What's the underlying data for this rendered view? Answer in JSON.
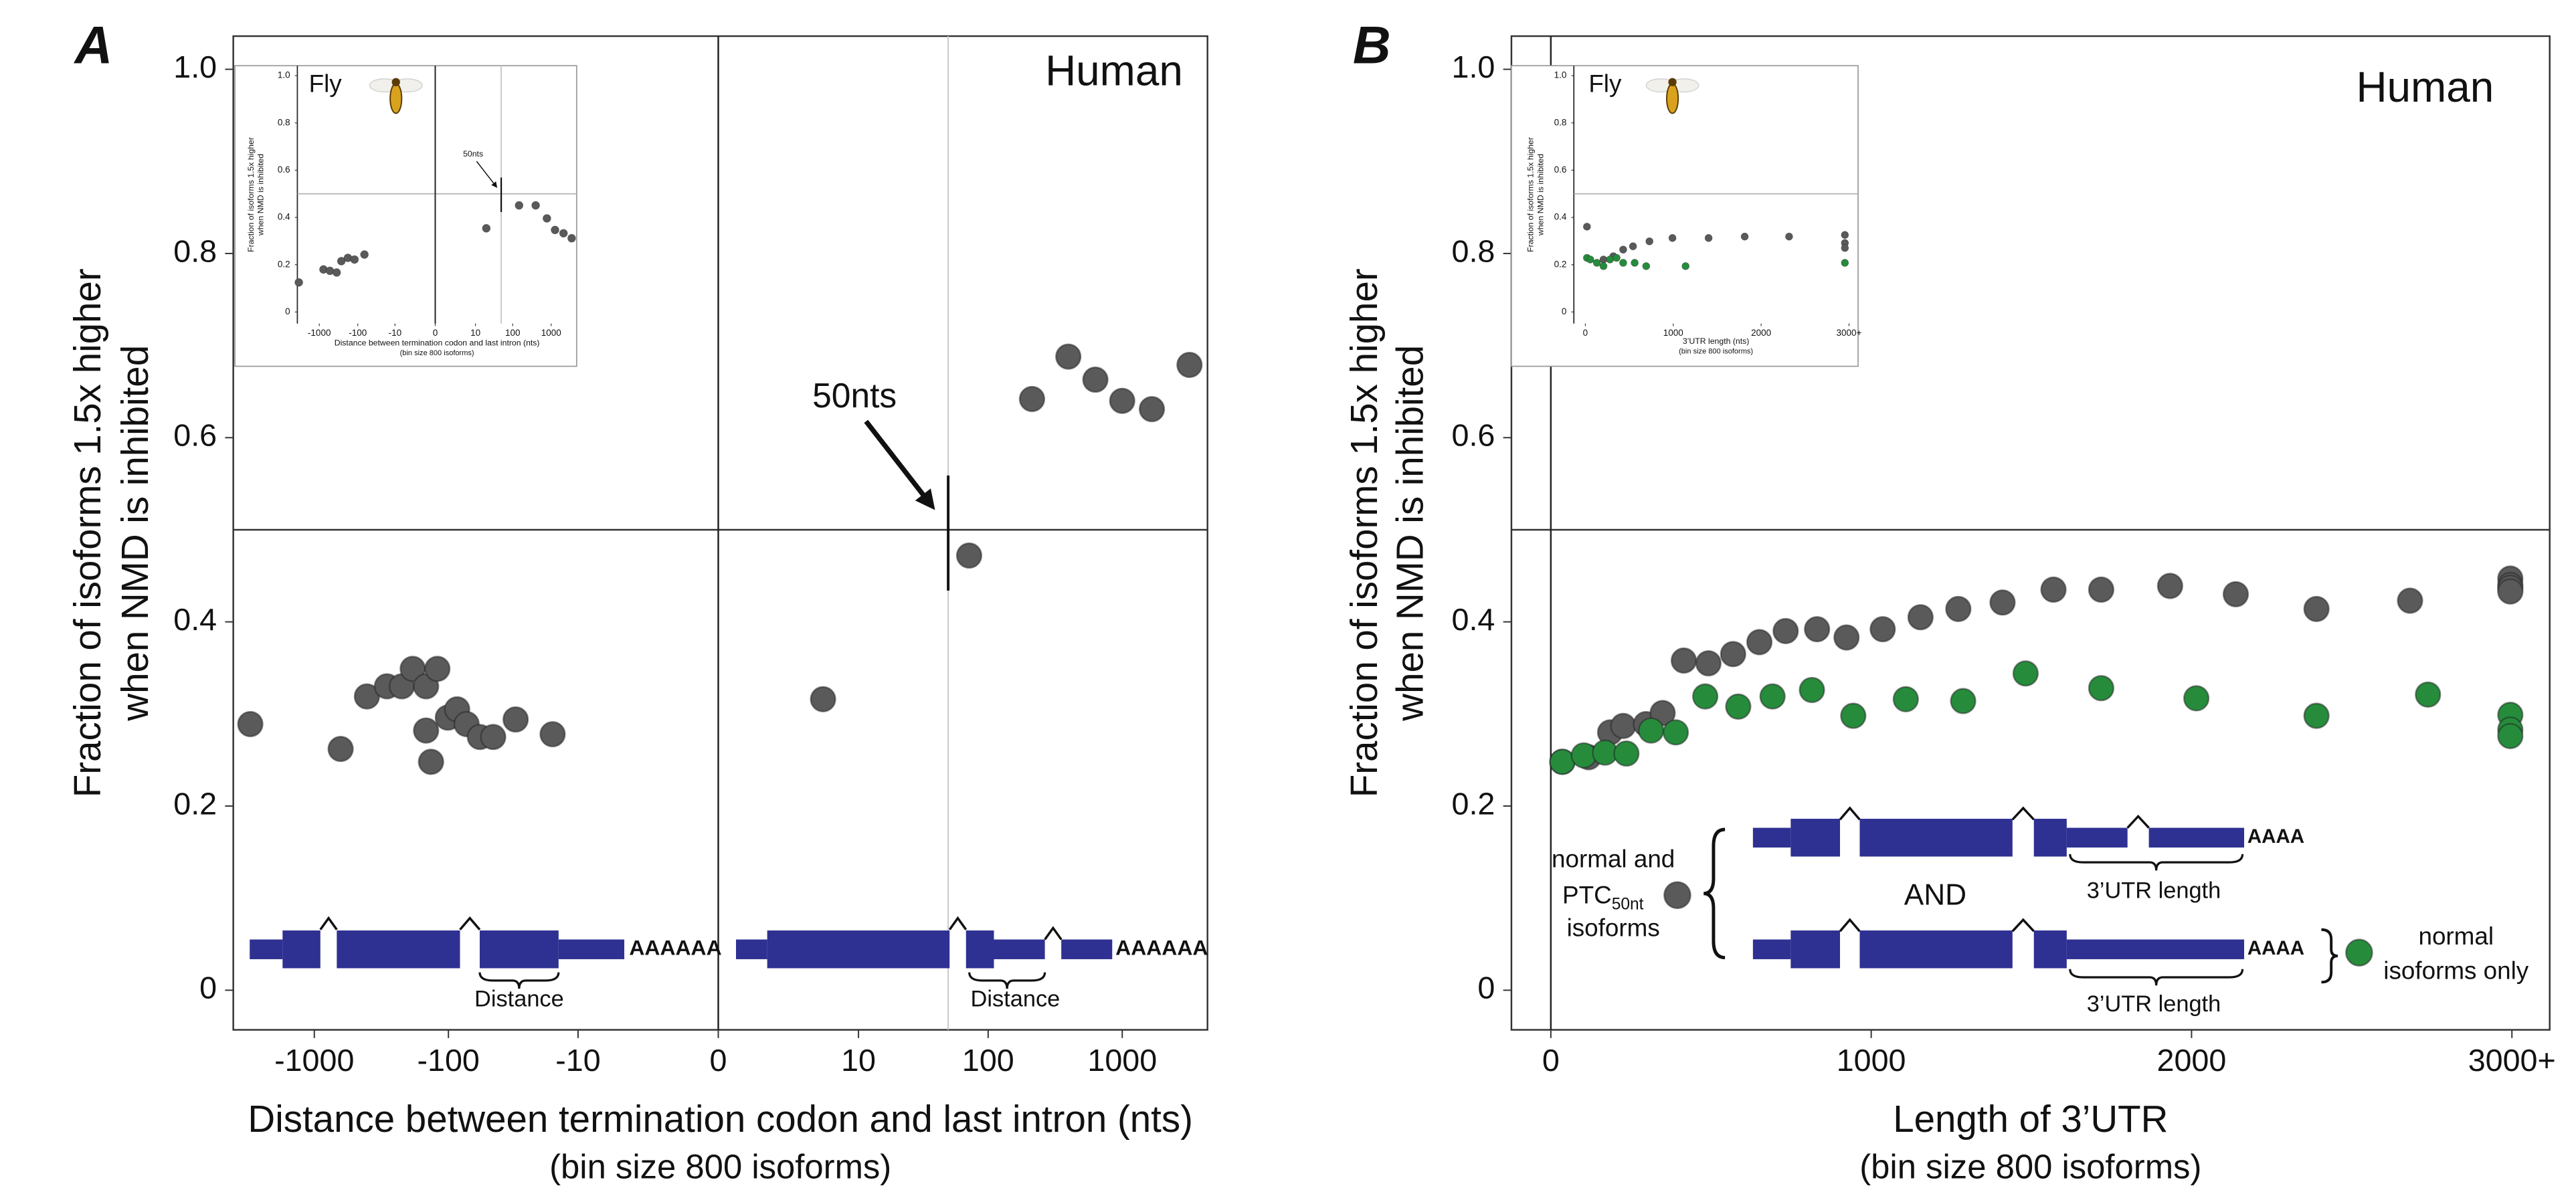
{
  "chart_data": [
    {
      "type": "scatter",
      "panel": "A",
      "label": "Human",
      "xscale": "symlog",
      "xlim": [
        -4000,
        4300
      ],
      "ylim": [
        -0.043,
        1.036
      ],
      "xticks": [
        -1000,
        -100,
        -10,
        0,
        10,
        100,
        1000
      ],
      "yticks": [
        0,
        0.2,
        0.4,
        0.6,
        0.8,
        {
          "value": 1,
          "label": "1.0"
        }
      ],
      "xlabel": [
        "Distance between termination codon and last intron (nts)",
        "(bin size 800 isoforms)"
      ],
      "ylabel": [
        "Fraction of isoforms 1.5x higher",
        "when NMD is inhibited"
      ],
      "reference_lines": {
        "x": 0,
        "y": 0.5
      },
      "threshold": {
        "x": 50,
        "label": "50nts"
      },
      "series": [
        {
          "color": "#5a5a5a",
          "x": [
            -2990,
            -637,
            -406,
            -288,
            -223,
            -185,
            -147,
            -121,
            -147,
            -135,
            -101,
            -86,
            -73,
            -58,
            -46,
            -31,
            -16,
            5,
            72,
            213,
            397,
            631,
            999,
            1660,
            3160
          ],
          "values": [
            0.289,
            0.262,
            0.319,
            0.33,
            0.33,
            0.349,
            0.33,
            0.349,
            0.282,
            0.248,
            0.296,
            0.305,
            0.289,
            0.275,
            0.275,
            0.294,
            0.278,
            0.316,
            0.472,
            0.642,
            0.688,
            0.663,
            0.64,
            0.631,
            0.679
          ]
        }
      ],
      "annotations": {
        "poly_a": "AAAAAA",
        "distance": "Distance"
      }
    },
    {
      "type": "scatter",
      "label": "Fly",
      "xscale": "symlog",
      "xlim": [
        -3700,
        4570
      ],
      "ylim": [
        -0.049,
        1.042
      ],
      "xticks": [
        -1000,
        -100,
        -10,
        0,
        10,
        100,
        1000
      ],
      "yticks": [
        0,
        0.2,
        0.4,
        0.6,
        0.8,
        {
          "value": 1,
          "label": "1.0"
        }
      ],
      "xlabel": [
        "Distance between termination codon and last intron (nts)",
        "(bin size 800 isoforms)"
      ],
      "ylabel": [
        "Fraction of isoforms 1.5x higher",
        "when NMD is inhibited"
      ],
      "reference_lines": {
        "x": 0,
        "y": 0.5
      },
      "threshold": {
        "x": 50,
        "label": "50nts"
      },
      "series": [
        {
          "color": "#5a5a5a",
          "x": [
            -3390,
            -780,
            -530,
            -354,
            -268,
            -181,
            -122,
            -67,
            20,
            147,
            397,
            775,
            1260,
            2090,
            3400
          ],
          "values": [
            0.125,
            0.18,
            0.174,
            0.167,
            0.215,
            0.229,
            0.222,
            0.243,
            0.354,
            0.451,
            0.451,
            0.396,
            0.347,
            0.333,
            0.312
          ]
        }
      ]
    },
    {
      "type": "scatter",
      "panel": "B",
      "label": "Human",
      "xscale": "linear",
      "xlim": [
        -123,
        3118
      ],
      "ylim": [
        -0.043,
        1.036
      ],
      "xticks": [
        0,
        1000,
        2000,
        {
          "value": 3000,
          "label": "3000+"
        }
      ],
      "yticks": [
        0,
        0.2,
        0.4,
        0.6,
        0.8,
        {
          "value": 1,
          "label": "1.0"
        }
      ],
      "xlabel": [
        "Length of 3’UTR",
        "(bin size 800 isoforms)"
      ],
      "ylabel": [
        "Fraction of isoforms 1.5x higher",
        "when NMD is inhibited"
      ],
      "reference_lines": {
        "x": 0,
        "y": 0.5
      },
      "series": [
        {
          "color": "#5a5a5a",
          "label_lines": [
            "normal and",
            "PTC",
            "isoforms"
          ],
          "label_subscript": "50nt",
          "x": [
            36,
            118,
            185,
            226,
            297,
            349,
            415,
            492,
            569,
            651,
            733,
            831,
            923,
            1036,
            1154,
            1272,
            1410,
            1569,
            1718,
            1933,
            2138,
            2390,
            2682,
            2995,
            2995,
            2995,
            2995
          ],
          "values": [
            0.248,
            0.253,
            0.28,
            0.287,
            0.289,
            0.301,
            0.358,
            0.355,
            0.365,
            0.378,
            0.39,
            0.392,
            0.383,
            0.392,
            0.405,
            0.414,
            0.421,
            0.435,
            0.435,
            0.439,
            0.43,
            0.414,
            0.423,
            0.447,
            0.44,
            0.437,
            0.433
          ]
        },
        {
          "color": "#268c3c",
          "label_lines": [
            "normal",
            "isoforms only"
          ],
          "x": [
            36,
            103,
            169,
            236,
            313,
            390,
            482,
            585,
            692,
            815,
            944,
            1108,
            1287,
            1482,
            1718,
            2015,
            2390,
            2738,
            2995,
            2995,
            2995
          ],
          "values": [
            0.248,
            0.255,
            0.258,
            0.257,
            0.282,
            0.28,
            0.319,
            0.308,
            0.319,
            0.326,
            0.298,
            0.316,
            0.314,
            0.344,
            0.328,
            0.317,
            0.298,
            0.321,
            0.299,
            0.283,
            0.276
          ]
        }
      ],
      "annotations": {
        "poly_a": "AAAA",
        "utr_length": "3’UTR length",
        "and": "AND"
      }
    },
    {
      "type": "scatter",
      "label": "Fly",
      "xscale": "linear",
      "xlim": [
        -131,
        3103
      ],
      "ylim": [
        -0.049,
        1.042
      ],
      "xticks": [
        0,
        1000,
        2000,
        {
          "value": 3000,
          "label": "3000+"
        }
      ],
      "yticks": [
        0,
        0.2,
        0.4,
        0.6,
        0.8,
        {
          "value": 1,
          "label": "1.0"
        }
      ],
      "xlabel": [
        "3’UTR length (nts)",
        "(bin size 800 isoforms)"
      ],
      "ylabel": [
        "Fraction of isoforms 1.5x higher",
        "when NMD is inhibited"
      ],
      "reference_lines": {
        "y": 0.5
      },
      "series": [
        {
          "color": "#5a5a5a",
          "x": [
            18,
            206,
            318,
            430,
            542,
            729,
            991,
            1402,
            1813,
            2318,
            2953,
            2953,
            2953
          ],
          "values": [
            0.361,
            0.222,
            0.236,
            0.264,
            0.278,
            0.299,
            0.313,
            0.313,
            0.319,
            0.319,
            0.326,
            0.292,
            0.271
          ]
        },
        {
          "color": "#268c3c",
          "x": [
            18,
            56,
            131,
            206,
            280,
            355,
            430,
            561,
            692,
            1140,
            2953
          ],
          "values": [
            0.229,
            0.222,
            0.208,
            0.194,
            0.222,
            0.229,
            0.208,
            0.208,
            0.194,
            0.194,
            0.208
          ]
        }
      ]
    }
  ]
}
